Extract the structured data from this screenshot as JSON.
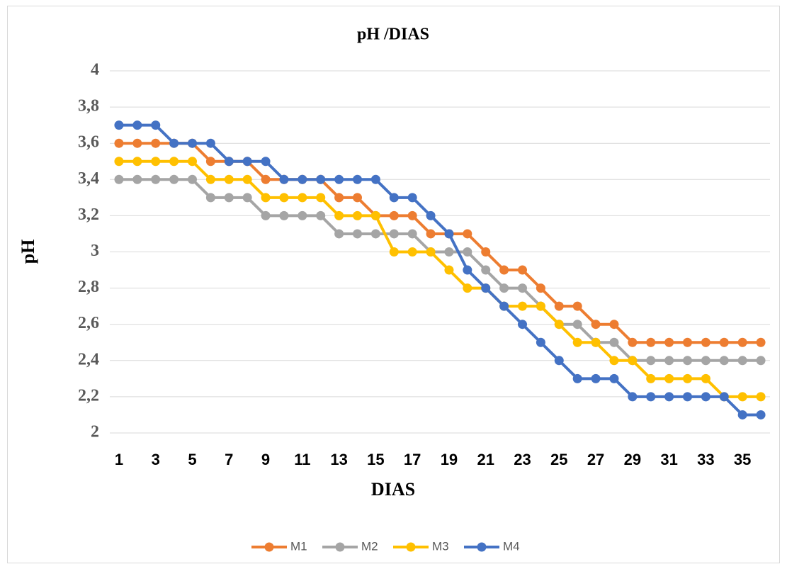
{
  "chart_data": {
    "type": "line",
    "title": "pH /DIAS",
    "x_label": "DIAS",
    "y_label": "pH",
    "categories": [
      1,
      null,
      3,
      null,
      5,
      null,
      7,
      null,
      9,
      null,
      11,
      null,
      13,
      null,
      15,
      null,
      17,
      null,
      19,
      null,
      21,
      null,
      23,
      null,
      25,
      null,
      27,
      null,
      29,
      null,
      31,
      null,
      33,
      null,
      35,
      null
    ],
    "series": [
      {
        "name": "M1",
        "color": "#ed7d31",
        "values": [
          3.6,
          3.6,
          3.6,
          3.6,
          3.6,
          3.5,
          3.5,
          3.5,
          3.4,
          3.4,
          3.4,
          3.4,
          3.3,
          3.3,
          3.2,
          3.2,
          3.2,
          3.1,
          3.1,
          3.1,
          3.0,
          2.9,
          2.9,
          2.8,
          2.7,
          2.7,
          2.6,
          2.6,
          2.5,
          2.5,
          2.5,
          2.5,
          2.5,
          2.5,
          2.5,
          2.5
        ]
      },
      {
        "name": "M2",
        "color": "#a5a5a5",
        "values": [
          3.4,
          3.4,
          3.4,
          3.4,
          3.4,
          3.3,
          3.3,
          3.3,
          3.2,
          3.2,
          3.2,
          3.2,
          3.1,
          3.1,
          3.1,
          3.1,
          3.1,
          3.0,
          3.0,
          3.0,
          2.9,
          2.8,
          2.8,
          2.7,
          2.6,
          2.6,
          2.5,
          2.5,
          2.4,
          2.4,
          2.4,
          2.4,
          2.4,
          2.4,
          2.4,
          2.4
        ]
      },
      {
        "name": "M3",
        "color": "#ffc000",
        "values": [
          3.5,
          3.5,
          3.5,
          3.5,
          3.5,
          3.4,
          3.4,
          3.4,
          3.3,
          3.3,
          3.3,
          3.3,
          3.2,
          3.2,
          3.2,
          3.0,
          3.0,
          3.0,
          2.9,
          2.8,
          2.8,
          2.7,
          2.7,
          2.7,
          2.6,
          2.5,
          2.5,
          2.4,
          2.4,
          2.3,
          2.3,
          2.3,
          2.3,
          2.2,
          2.2,
          2.2
        ]
      },
      {
        "name": "M4",
        "color": "#4472c4",
        "values": [
          3.7,
          3.7,
          3.7,
          3.6,
          3.6,
          3.6,
          3.5,
          3.5,
          3.5,
          3.4,
          3.4,
          3.4,
          3.4,
          3.4,
          3.4,
          3.3,
          3.3,
          3.2,
          3.1,
          2.9,
          2.8,
          2.7,
          2.6,
          2.5,
          2.4,
          2.3,
          2.3,
          2.3,
          2.2,
          2.2,
          2.2,
          2.2,
          2.2,
          2.2,
          2.1,
          2.1
        ]
      }
    ],
    "ylim": [
      2,
      4
    ],
    "yticks": [
      2,
      {
        "value": 2.2,
        "label": "2,2"
      },
      {
        "value": 2.4,
        "label": "2,4"
      },
      {
        "value": 2.6,
        "label": "2,6"
      },
      {
        "value": 2.8,
        "label": "2,8"
      },
      3,
      {
        "value": 3.2,
        "label": "3,2"
      },
      {
        "value": 3.4,
        "label": "3,4"
      },
      {
        "value": 3.6,
        "label": "3,6"
      },
      {
        "value": 3.8,
        "label": "3,8"
      },
      4
    ],
    "grid": true,
    "legend": "bottom"
  }
}
